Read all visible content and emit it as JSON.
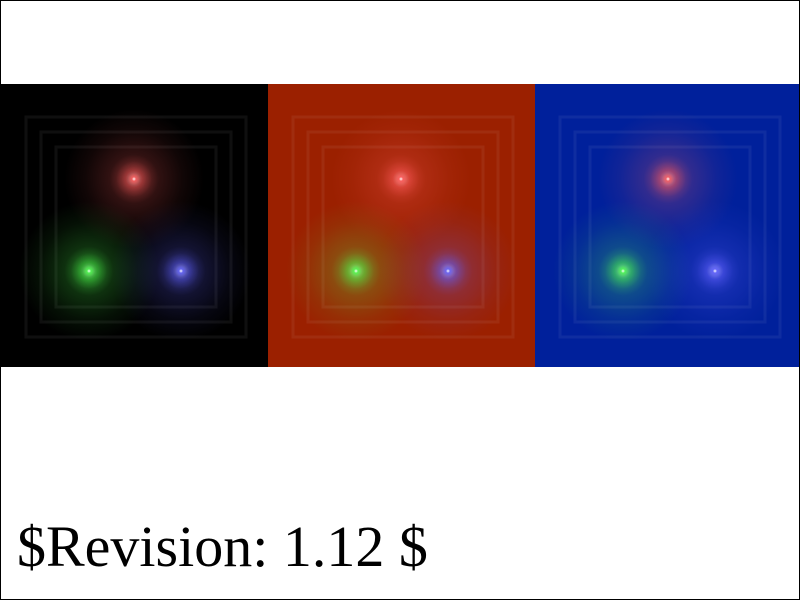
{
  "panels": [
    {
      "id": "black",
      "background": "#000000"
    },
    {
      "id": "red",
      "background": "#9b2000"
    },
    {
      "id": "blue",
      "background": "#00209b"
    }
  ],
  "lights": [
    {
      "name": "red-light",
      "color": "#ff5a5a"
    },
    {
      "name": "green-light",
      "color": "#4cff4c"
    },
    {
      "name": "blue-light",
      "color": "#6060ff"
    }
  ],
  "revision_text": "$Revision: 1.12 $"
}
